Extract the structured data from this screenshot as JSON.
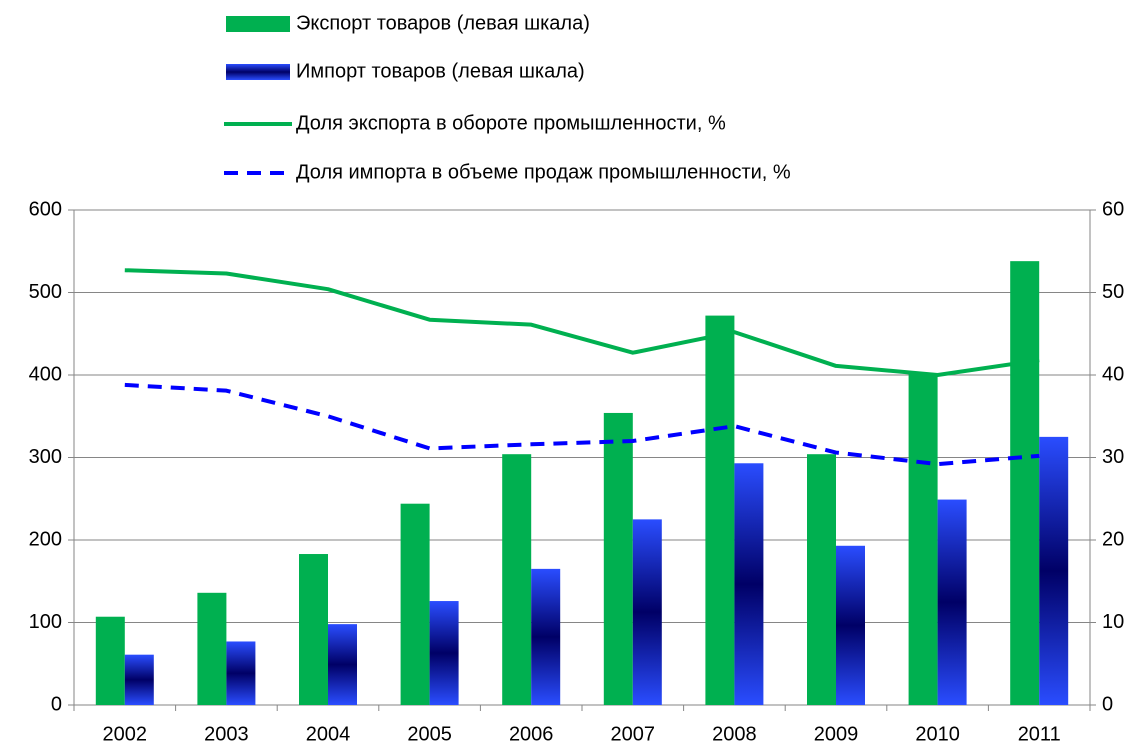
{
  "chart_data": {
    "type": "bar",
    "categories": [
      "2002",
      "2003",
      "2004",
      "2005",
      "2006",
      "2007",
      "2008",
      "2009",
      "2010",
      "2011"
    ],
    "series": [
      {
        "name": "Экспорт товаров (левая шкала)",
        "type": "bar",
        "color": "#00b050",
        "values": [
          107,
          136,
          183,
          244,
          304,
          354,
          472,
          304,
          402,
          538
        ]
      },
      {
        "name": "Импорт товаров (левая шкала)",
        "type": "bar",
        "color": "#1a3cff",
        "values": [
          61,
          77,
          98,
          126,
          165,
          225,
          293,
          193,
          249,
          325
        ]
      },
      {
        "name": "Доля экспорта в обороте промышленности, %",
        "type": "line",
        "axis": "y2",
        "color": "#00b050",
        "values": [
          52.7,
          52.3,
          50.4,
          46.7,
          46.1,
          42.7,
          45.2,
          41.1,
          40.0,
          41.8
        ]
      },
      {
        "name": "Доля импорта в объеме продаж промышленности, %",
        "type": "line",
        "axis": "y2",
        "dashed": true,
        "color": "#0000ff",
        "values": [
          38.8,
          38.1,
          35.0,
          31.1,
          31.6,
          32.0,
          33.8,
          30.6,
          29.2,
          30.2
        ]
      }
    ],
    "ylim": [
      0,
      600
    ],
    "yticks": [
      0,
      100,
      200,
      300,
      400,
      500,
      600
    ],
    "y2lim": [
      0,
      60
    ],
    "y2ticks": [
      0,
      10,
      20,
      30,
      40,
      50,
      60
    ],
    "grid": true,
    "legend": "top"
  }
}
